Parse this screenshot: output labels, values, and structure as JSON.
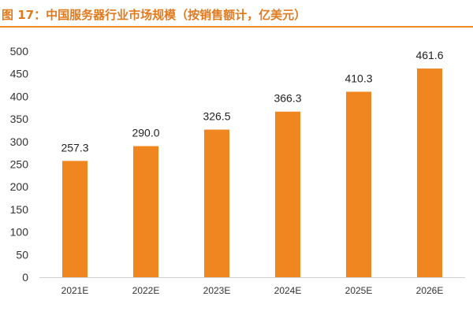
{
  "figure": {
    "title": "图 17：中国服务器行业市场规模（按销售额计，亿美元）"
  },
  "colors": {
    "accent": "#f08a24",
    "bar": "#f0861f",
    "axis": "#d0d0d0"
  },
  "chart_data": {
    "type": "bar",
    "title": "图 17：中国服务器行业市场规模（按销售额计，亿美元）",
    "categories": [
      "2021E",
      "2022E",
      "2023E",
      "2024E",
      "2025E",
      "2026E"
    ],
    "values": [
      257.3,
      290.0,
      326.5,
      366.3,
      410.3,
      461.6
    ],
    "value_labels": [
      "257.3",
      "290.0",
      "326.5",
      "366.3",
      "410.3",
      "461.6"
    ],
    "xlabel": "",
    "ylabel": "",
    "ylim": [
      0,
      500
    ],
    "yticks": [
      0,
      50,
      100,
      150,
      200,
      250,
      300,
      350,
      400,
      450,
      500
    ],
    "grid": false,
    "legend": "none"
  }
}
